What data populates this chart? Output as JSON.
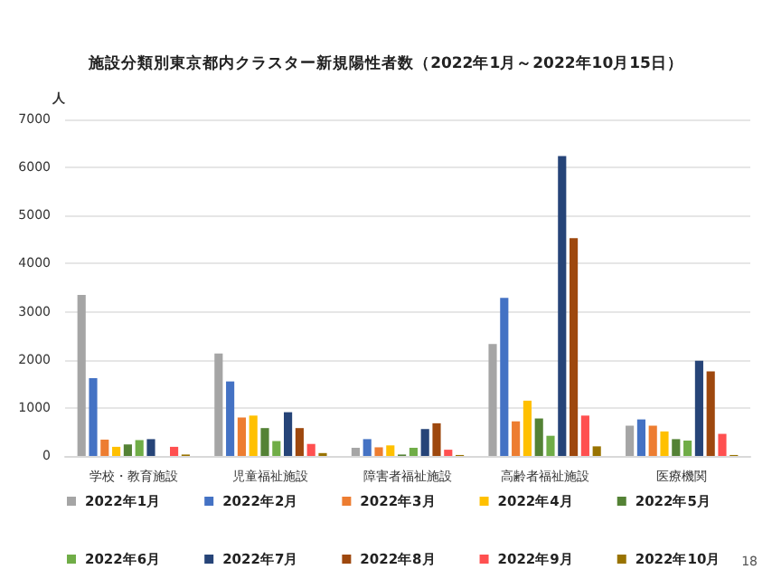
{
  "chart_data": {
    "type": "bar",
    "title": "施設分類別東京都内クラスター新規陽性者数（2022年1月～2022年10月15日）",
    "ylabel": "人",
    "categories": [
      "学校・教育施設",
      "児童福祉施設",
      "障害者福祉施設",
      "高齢者福祉施設",
      "医療機関"
    ],
    "series": [
      {
        "name": "2022年1月",
        "color": "#a5a5a5",
        "values": [
          3350,
          2130,
          170,
          2330,
          630
        ]
      },
      {
        "name": "2022年2月",
        "color": "#4472c4",
        "values": [
          1620,
          1550,
          350,
          3290,
          760
        ]
      },
      {
        "name": "2022年3月",
        "color": "#ed7d31",
        "values": [
          340,
          800,
          180,
          720,
          630
        ]
      },
      {
        "name": "2022年4月",
        "color": "#ffc000",
        "values": [
          190,
          840,
          220,
          1150,
          510
        ]
      },
      {
        "name": "2022年5月",
        "color": "#548235",
        "values": [
          240,
          580,
          30,
          780,
          350
        ]
      },
      {
        "name": "2022年6月",
        "color": "#70ad47",
        "values": [
          330,
          310,
          170,
          420,
          320
        ]
      },
      {
        "name": "2022年7月",
        "color": "#264478",
        "values": [
          350,
          910,
          560,
          6240,
          1980
        ]
      },
      {
        "name": "2022年8月",
        "color": "#9e480e",
        "values": [
          0,
          580,
          680,
          4530,
          1760
        ]
      },
      {
        "name": "2022年9月",
        "color": "#ff5050",
        "values": [
          190,
          250,
          130,
          840,
          460
        ]
      },
      {
        "name": "2022年10月",
        "color": "#997300",
        "values": [
          30,
          60,
          20,
          200,
          20
        ]
      }
    ],
    "ylim": [
      0,
      7000
    ],
    "yticks": [
      0,
      1000,
      2000,
      3000,
      4000,
      5000,
      6000,
      7000
    ],
    "grid": "y",
    "legend": "bottom",
    "annotations": [
      "18"
    ]
  }
}
